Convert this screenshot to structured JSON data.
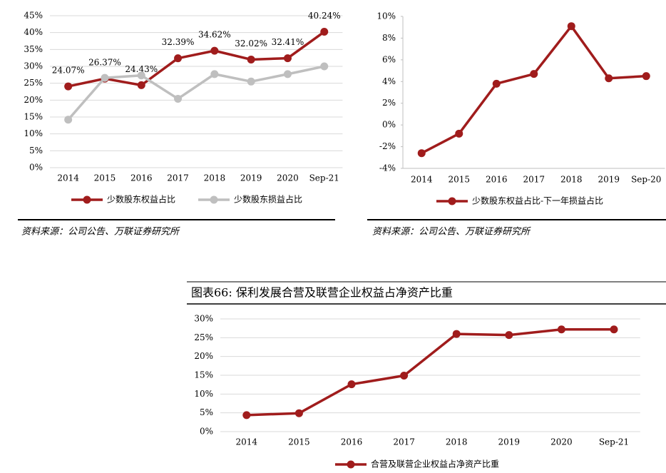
{
  "chart_data": [
    {
      "type": "line",
      "categories": [
        "2014",
        "2015",
        "2016",
        "2017",
        "2018",
        "2019",
        "2020",
        "Sep-21"
      ],
      "series": [
        {
          "name": "少数股东权益占比",
          "color": "#a01c1c",
          "values": [
            24.07,
            26.37,
            24.43,
            32.39,
            34.62,
            32.02,
            32.41,
            40.24
          ],
          "value_labels": [
            "24.07%",
            "26.37%",
            "24.43%",
            "32.39%",
            "34.62%",
            "32.02%",
            "32.41%",
            "40.24%"
          ]
        },
        {
          "name": "少数股东损益占比",
          "color": "#bfbfbf",
          "values": [
            14.2,
            26.6,
            27.3,
            20.4,
            27.7,
            25.5,
            27.7,
            30.0
          ]
        }
      ],
      "ylim": [
        0,
        45
      ],
      "yticks": [
        {
          "value": 0,
          "label": "0%"
        },
        {
          "value": 5,
          "label": "5%"
        },
        {
          "value": 10,
          "label": "10%"
        },
        {
          "value": 15,
          "label": "15%"
        },
        {
          "value": 20,
          "label": "20%"
        },
        {
          "value": 25,
          "label": "25%"
        },
        {
          "value": 30,
          "label": "30%"
        },
        {
          "value": 35,
          "label": "35%"
        },
        {
          "value": 40,
          "label": "40%"
        },
        {
          "value": 45,
          "label": "45%"
        }
      ],
      "grid": true,
      "source": "资料来源：公司公告、万联证券研究所"
    },
    {
      "type": "line",
      "categories": [
        "2014",
        "2015",
        "2016",
        "2017",
        "2018",
        "2019",
        "Sep-20"
      ],
      "series": [
        {
          "name": "少数股东权益占比-下一年损益占比",
          "color": "#a01c1c",
          "values": [
            -2.6,
            -0.8,
            3.8,
            4.7,
            9.1,
            4.3,
            4.5
          ]
        }
      ],
      "ylim": [
        -4,
        10
      ],
      "yticks": [
        {
          "value": -4,
          "label": "-4%"
        },
        {
          "value": -2,
          "label": "-2%"
        },
        {
          "value": 0,
          "label": "0%"
        },
        {
          "value": 2,
          "label": "2%"
        },
        {
          "value": 4,
          "label": "4%"
        },
        {
          "value": 6,
          "label": "6%"
        },
        {
          "value": 8,
          "label": "8%"
        },
        {
          "value": 10,
          "label": "10%"
        }
      ],
      "grid": false,
      "source": "资料来源：公司公告、万联证券研究所"
    },
    {
      "type": "line",
      "title": "图表66: 保利发展合营及联营企业权益占净资产比重",
      "categories": [
        "2014",
        "2015",
        "2016",
        "2017",
        "2018",
        "2019",
        "2020",
        "Sep-21"
      ],
      "series": [
        {
          "name": "合营及联营企业权益占净资产比重",
          "color": "#a01c1c",
          "values": [
            4.4,
            4.9,
            12.6,
            14.9,
            26.0,
            25.7,
            27.2,
            27.2
          ]
        }
      ],
      "ylim": [
        0,
        30
      ],
      "yticks": [
        {
          "value": 0,
          "label": "0%"
        },
        {
          "value": 5,
          "label": "5%"
        },
        {
          "value": 10,
          "label": "10%"
        },
        {
          "value": 15,
          "label": "15%"
        },
        {
          "value": 20,
          "label": "20%"
        },
        {
          "value": 25,
          "label": "25%"
        },
        {
          "value": 30,
          "label": "30%"
        }
      ],
      "grid": true
    }
  ]
}
